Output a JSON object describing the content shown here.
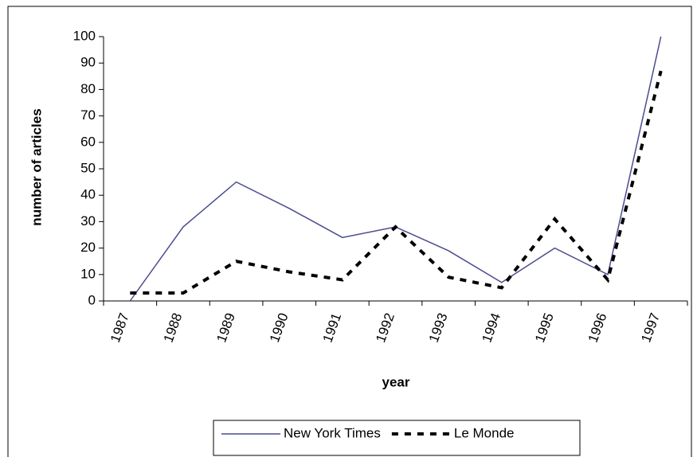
{
  "chart_data": {
    "type": "line",
    "x_label": "year",
    "y_label": "number of articles",
    "categories": [
      "1987",
      "1988",
      "1989",
      "1990",
      "1991",
      "1992",
      "1993",
      "1994",
      "1995",
      "1996",
      "1997"
    ],
    "series": [
      {
        "name": "New York Times",
        "color": "#4b4b8f",
        "style": "solid",
        "values": [
          0,
          28,
          45,
          35,
          24,
          28,
          19,
          7,
          20,
          10,
          100
        ]
      },
      {
        "name": "Le Monde",
        "color": "#000000",
        "style": "dashed",
        "values": [
          3,
          3,
          15,
          11,
          8,
          28,
          9,
          5,
          31,
          8,
          87
        ]
      }
    ],
    "ylim": [
      0,
      100
    ],
    "yticks": [
      0,
      10,
      20,
      30,
      40,
      50,
      60,
      70,
      80,
      90,
      100
    ],
    "grid": false,
    "legend": "bottom"
  }
}
